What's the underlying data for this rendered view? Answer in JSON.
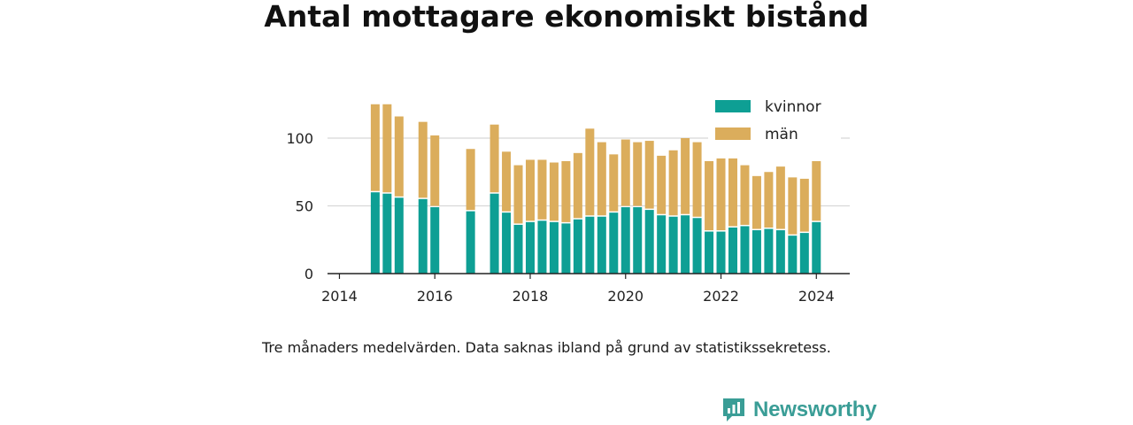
{
  "brand": {
    "name": "Newsworthy",
    "icon": "newsworthy-logo-icon",
    "color": "#3a9d96"
  },
  "caption": "Tre månaders medelvärden. Data saknas ibland på grund av statistikssekretess.",
  "chart_data": {
    "type": "bar",
    "stacked": true,
    "title": "Antal mottagare ekonomiskt bistånd",
    "xlabel": "",
    "ylabel": "",
    "xlim": [
      2013.75,
      2024.7
    ],
    "ylim": [
      0,
      130
    ],
    "x_ticks": [
      2014,
      2016,
      2018,
      2020,
      2022,
      2024
    ],
    "y_ticks": [
      0,
      50,
      100
    ],
    "grid": true,
    "legend_position": "top-right",
    "colors": {
      "kvinnor": "#0e9f94",
      "män": "#dbad5c"
    },
    "x": [
      2014.75,
      2015.0,
      2015.25,
      2015.75,
      2016.0,
      2016.75,
      2017.25,
      2017.5,
      2017.75,
      2018.0,
      2018.25,
      2018.5,
      2018.75,
      2019.0,
      2019.25,
      2019.5,
      2019.75,
      2020.0,
      2020.25,
      2020.5,
      2020.75,
      2021.0,
      2021.25,
      2021.5,
      2021.75,
      2022.0,
      2022.25,
      2022.5,
      2022.75,
      2023.0,
      2023.25,
      2023.5,
      2023.75,
      2024.0
    ],
    "series": [
      {
        "name": "kvinnor",
        "values": [
          60,
          59,
          56,
          55,
          49,
          46,
          59,
          45,
          36,
          38,
          39,
          38,
          37,
          40,
          42,
          42,
          45,
          49,
          49,
          47,
          43,
          42,
          43,
          41,
          31,
          31,
          34,
          35,
          32,
          33,
          32,
          28,
          30,
          38
        ]
      },
      {
        "name": "män",
        "values": [
          65,
          66,
          60,
          57,
          53,
          46,
          51,
          45,
          44,
          46,
          45,
          44,
          46,
          49,
          65,
          55,
          43,
          50,
          48,
          51,
          44,
          49,
          57,
          56,
          52,
          54,
          51,
          45,
          40,
          42,
          47,
          43,
          40,
          45
        ]
      }
    ]
  }
}
